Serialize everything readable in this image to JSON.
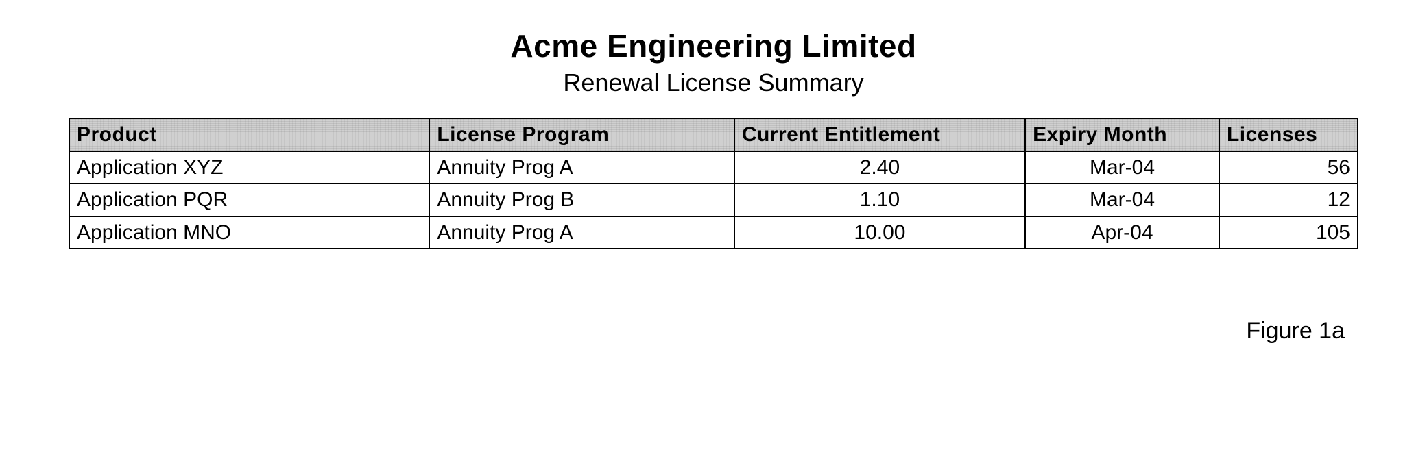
{
  "header": {
    "company": "Acme Engineering Limited",
    "report": "Renewal License Summary"
  },
  "table": {
    "type": "table",
    "border_color": "#000000",
    "header_bg": "#d0d0d0",
    "columns": [
      {
        "key": "product",
        "label": "Product",
        "width_pct": 26,
        "align": "left"
      },
      {
        "key": "program",
        "label": "License Program",
        "width_pct": 22,
        "align": "left"
      },
      {
        "key": "entitlement",
        "label": "Current Entitlement",
        "width_pct": 21,
        "align": "center"
      },
      {
        "key": "expiry",
        "label": "Expiry Month",
        "width_pct": 14,
        "align": "center"
      },
      {
        "key": "licenses",
        "label": "Licenses",
        "width_pct": 10,
        "align": "right"
      }
    ],
    "rows": [
      {
        "product": "Application XYZ",
        "program": "Annuity Prog A",
        "entitlement": "2.40",
        "expiry": "Mar-04",
        "licenses": "56"
      },
      {
        "product": "Application PQR",
        "program": "Annuity Prog B",
        "entitlement": "1.10",
        "expiry": "Mar-04",
        "licenses": "12"
      },
      {
        "product": "Application MNO",
        "program": "Annuity Prog A",
        "entitlement": "10.00",
        "expiry": "Apr-04",
        "licenses": "105"
      }
    ]
  },
  "figure_label": "Figure 1a"
}
